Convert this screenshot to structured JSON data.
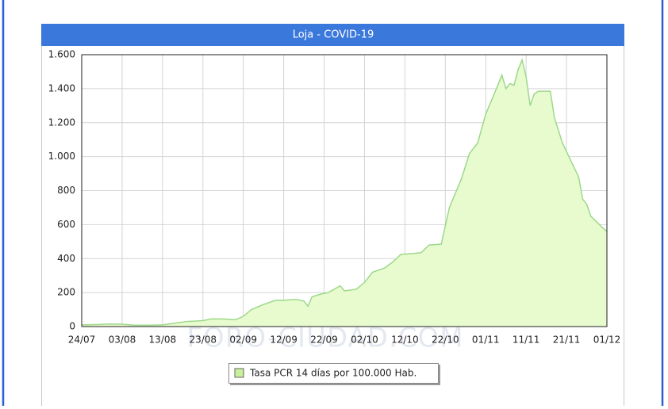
{
  "chart_data": {
    "type": "area",
    "title": "Loja - COVID-19",
    "watermark": "FORO-CIUDAD.COM",
    "x": [
      "24/07",
      "28/07",
      "31/07",
      "03/08",
      "06/08",
      "10/08",
      "13/08",
      "16/08",
      "19/08",
      "21/08",
      "23/08",
      "25/08",
      "28/08",
      "31/08",
      "02/09",
      "04/09",
      "07/09",
      "10/09",
      "12/09",
      "15/09",
      "17/09",
      "18/09",
      "19/09",
      "21/09",
      "23/09",
      "26/09",
      "27/09",
      "30/09",
      "02/10",
      "04/10",
      "07/10",
      "09/10",
      "11/10",
      "14/10",
      "16/10",
      "18/10",
      "21/10",
      "23/10",
      "26/10",
      "28/10",
      "30/10",
      "01/11",
      "04/11",
      "05/11",
      "06/11",
      "07/11",
      "08/11",
      "09/11",
      "10/11",
      "11/11",
      "12/11",
      "13/11",
      "14/11",
      "17/11",
      "18/11",
      "20/11",
      "22/11",
      "24/11",
      "25/11",
      "26/11",
      "27/11",
      "30/11",
      "01/12"
    ],
    "series": [
      {
        "name": "Tasa PCR 14 días por 100.000 Hab.",
        "color": "#9ed88a",
        "fill": "#e7fbcf",
        "swatch": "#c9f09a",
        "values": [
          10,
          12,
          15,
          14,
          8,
          8,
          10,
          20,
          30,
          32,
          35,
          45,
          45,
          40,
          60,
          100,
          130,
          155,
          155,
          160,
          150,
          120,
          175,
          190,
          200,
          240,
          210,
          220,
          260,
          320,
          345,
          380,
          425,
          430,
          435,
          480,
          485,
          700,
          870,
          1020,
          1080,
          1250,
          1420,
          1480,
          1400,
          1430,
          1420,
          1510,
          1570,
          1470,
          1300,
          1370,
          1385,
          1385,
          1230,
          1080,
          980,
          880,
          750,
          720,
          650,
          580,
          560
        ]
      }
    ],
    "xlim": [
      "24/07",
      "01/12"
    ],
    "xticks": [
      "24/07",
      "03/08",
      "13/08",
      "23/08",
      "02/09",
      "12/09",
      "22/09",
      "02/10",
      "12/10",
      "22/10",
      "01/11",
      "11/11",
      "21/11",
      "01/12"
    ],
    "ylim": [
      0,
      1600
    ],
    "yticks": [
      0,
      200,
      400,
      600,
      800,
      {
        "value": 1000,
        "label": "1.000"
      },
      {
        "value": 1200,
        "label": "1.200"
      },
      {
        "value": 1400,
        "label": "1.400"
      },
      {
        "value": 1600,
        "label": "1.600"
      }
    ],
    "grid": true
  }
}
